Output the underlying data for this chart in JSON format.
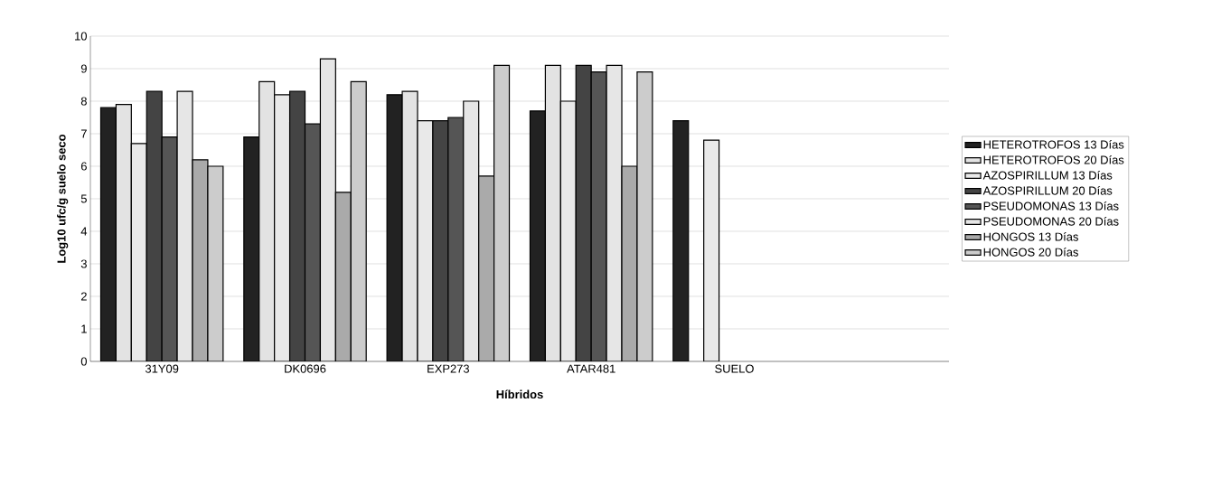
{
  "chart_data": {
    "type": "bar",
    "xlabel": "Híbridos",
    "ylabel": "Log10 ufc/g suelo seco",
    "categories": [
      "31Y09",
      "DK0696",
      "EXP273",
      "ATAR481",
      "SUELO",
      null
    ],
    "series": [
      {
        "name": "HETEROTROFOS 13 Días",
        "color": "#222222",
        "values": [
          7.8,
          6.9,
          8.2,
          7.7,
          7.4,
          null
        ]
      },
      {
        "name": "HETEROTROFOS 20 Días",
        "color": "#e3e3e3",
        "values": [
          7.9,
          8.6,
          8.3,
          9.1,
          null,
          null
        ]
      },
      {
        "name": "AZOSPIRILLUM 13 Días",
        "color": "#e9e9e9",
        "values": [
          6.7,
          8.2,
          7.4,
          8.0,
          6.8,
          null
        ]
      },
      {
        "name": "AZOSPIRILLUM 20 Días",
        "color": "#444444",
        "values": [
          8.3,
          8.3,
          7.4,
          9.1,
          null,
          null
        ]
      },
      {
        "name": "PSEUDOMONAS 13 Días",
        "color": "#555555",
        "values": [
          6.9,
          7.3,
          7.5,
          8.9,
          null,
          null
        ]
      },
      {
        "name": "PSEUDOMONAS 20 Días",
        "color": "#e6e6e6",
        "values": [
          8.3,
          9.3,
          8.0,
          9.1,
          null,
          null
        ]
      },
      {
        "name": "HONGOS 13 Días",
        "color": "#aaaaaa",
        "values": [
          6.2,
          5.2,
          5.7,
          6.0,
          null,
          null
        ]
      },
      {
        "name": "HONGOS 20 Días",
        "color": "#cccccc",
        "values": [
          6.0,
          8.6,
          9.1,
          8.9,
          null,
          null
        ]
      }
    ],
    "ylim": [
      0,
      10
    ],
    "yticks": [
      0,
      1,
      2,
      3,
      4,
      5,
      6,
      7,
      8,
      9,
      10
    ],
    "grid": "y",
    "legend": "right"
  }
}
